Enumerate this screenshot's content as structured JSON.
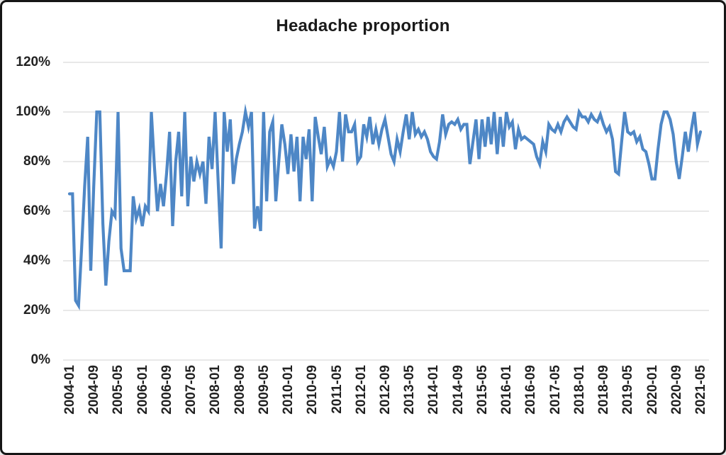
{
  "figure": {
    "title": "Headache proportion"
  },
  "colors": {
    "line": "#4e87c6",
    "grid": "#d9d9d9",
    "text": "#222222",
    "border": "#161616",
    "background": "#ffffff"
  },
  "chart_data": {
    "type": "line",
    "title": "Headache proportion",
    "x_frequency": "monthly",
    "x_range": [
      "2004-01",
      "2021-05"
    ],
    "x_tick_step_months": 8,
    "x_tick_labels": [
      "2004-01",
      "2004-09",
      "2005-05",
      "2006-01",
      "2006-09",
      "2007-05",
      "2008-01",
      "2008-09",
      "2009-05",
      "2010-01",
      "2010-09",
      "2011-05",
      "2012-01",
      "2012-09",
      "2013-05",
      "2014-01",
      "2014-09",
      "2015-05",
      "2016-01",
      "2016-09",
      "2017-05",
      "2018-01",
      "2018-09",
      "2019-05",
      "2020-01",
      "2020-09",
      "2021-05"
    ],
    "y_tick_labels": [
      "0%",
      "20%",
      "40%",
      "60%",
      "80%",
      "100%",
      "120%"
    ],
    "ylim": [
      0,
      120
    ],
    "grid": "horizontal",
    "legend": "none",
    "line_color": "#4e87c6",
    "series": [
      {
        "name": "Headache proportion",
        "unit": "%",
        "values": [
          67,
          67,
          24,
          22,
          45,
          70,
          90,
          36,
          70,
          100,
          100,
          55,
          30,
          48,
          60,
          58,
          100,
          45,
          36,
          36,
          36,
          66,
          57,
          61,
          54,
          62,
          60,
          100,
          78,
          60,
          71,
          62,
          75,
          92,
          54,
          80,
          92,
          66,
          100,
          62,
          82,
          72,
          80,
          75,
          80,
          63,
          90,
          77,
          100,
          72,
          45,
          100,
          84,
          97,
          71,
          81,
          87,
          92,
          100,
          94,
          100,
          53,
          62,
          52,
          100,
          64,
          92,
          96,
          64,
          80,
          95,
          87,
          75,
          91,
          76,
          90,
          64,
          90,
          81,
          93,
          64,
          98,
          90,
          83,
          94,
          78,
          81,
          78,
          84,
          100,
          80,
          99,
          92,
          92,
          95,
          80,
          82,
          95,
          90,
          98,
          87,
          93,
          87,
          93,
          97,
          90,
          83,
          80,
          89,
          84,
          92,
          99,
          89,
          100,
          91,
          93,
          90,
          92,
          89,
          84,
          82,
          81,
          88,
          99,
          91,
          95,
          96,
          95,
          97,
          93,
          95,
          95,
          79,
          88,
          97,
          81,
          97,
          86,
          98,
          87,
          100,
          83,
          98,
          86,
          100,
          94,
          96,
          85,
          93,
          89,
          90,
          89,
          88,
          87,
          82,
          79,
          88,
          84,
          95,
          93,
          92,
          95,
          92,
          96,
          98,
          96,
          94,
          93,
          100,
          98,
          98,
          96,
          99,
          97,
          96,
          99,
          95,
          92,
          94,
          89,
          76,
          75,
          88,
          100,
          92,
          91,
          92,
          88,
          90,
          85,
          84,
          79,
          73,
          73,
          85,
          95,
          100,
          100,
          97,
          91,
          80,
          73,
          82,
          92,
          84,
          93,
          100,
          87,
          92
        ]
      }
    ]
  }
}
